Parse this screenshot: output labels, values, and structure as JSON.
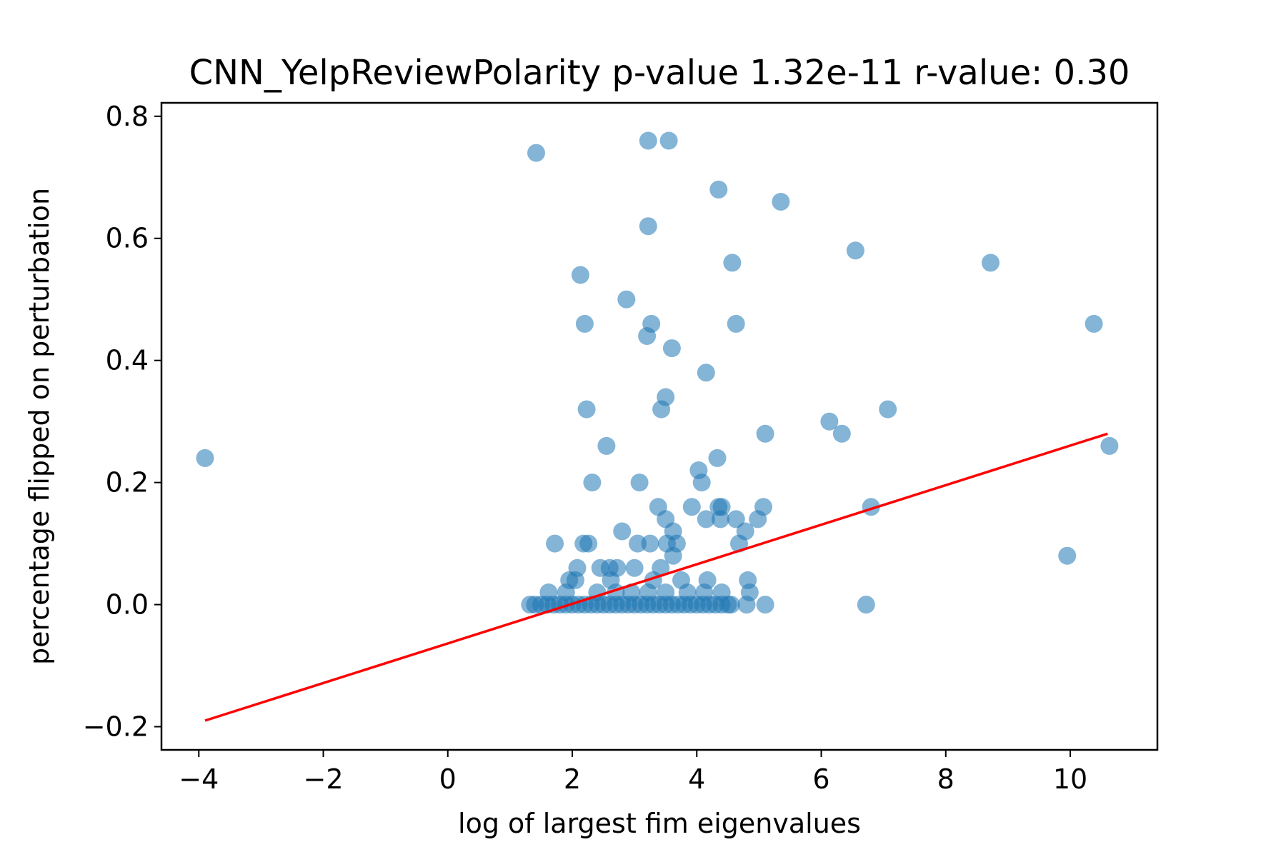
{
  "chart_data": {
    "type": "scatter",
    "title": "CNN_YelpReviewPolarity p-value 1.32e-11 r-value: 0.30",
    "xlabel": "log of largest fim eigenvalues",
    "ylabel": "percentage flipped on perturbation",
    "xlim": [
      -4.6,
      11.4
    ],
    "ylim": [
      -0.238,
      0.822
    ],
    "x_ticks": [
      -4,
      -2,
      0,
      2,
      4,
      6,
      8,
      10
    ],
    "x_tick_labels": [
      "−4",
      "−2",
      "0",
      "2",
      "4",
      "6",
      "8",
      "10"
    ],
    "y_ticks": [
      -0.2,
      0.0,
      0.2,
      0.4,
      0.6,
      0.8
    ],
    "y_tick_labels": [
      "−0.2",
      "0.0",
      "0.2",
      "0.4",
      "0.6",
      "0.8"
    ],
    "grid": false,
    "point_color": "#1f77b4",
    "point_alpha": 0.55,
    "line_color": "#ff0000",
    "points": [
      [
        -3.9,
        0.24
      ],
      [
        1.42,
        0.74
      ],
      [
        3.22,
        0.76
      ],
      [
        3.55,
        0.76
      ],
      [
        4.35,
        0.68
      ],
      [
        5.35,
        0.66
      ],
      [
        3.22,
        0.62
      ],
      [
        6.55,
        0.58
      ],
      [
        4.57,
        0.56
      ],
      [
        8.72,
        0.56
      ],
      [
        2.13,
        0.54
      ],
      [
        2.87,
        0.5
      ],
      [
        2.2,
        0.46
      ],
      [
        3.27,
        0.46
      ],
      [
        4.63,
        0.46
      ],
      [
        10.38,
        0.46
      ],
      [
        3.2,
        0.44
      ],
      [
        3.6,
        0.42
      ],
      [
        4.15,
        0.38
      ],
      [
        3.5,
        0.34
      ],
      [
        2.23,
        0.32
      ],
      [
        3.43,
        0.32
      ],
      [
        7.07,
        0.32
      ],
      [
        6.13,
        0.3
      ],
      [
        6.33,
        0.28
      ],
      [
        5.1,
        0.28
      ],
      [
        2.55,
        0.26
      ],
      [
        10.63,
        0.26
      ],
      [
        4.33,
        0.24
      ],
      [
        4.03,
        0.22
      ],
      [
        2.32,
        0.2
      ],
      [
        3.08,
        0.2
      ],
      [
        4.08,
        0.2
      ],
      [
        3.38,
        0.16
      ],
      [
        3.92,
        0.16
      ],
      [
        4.35,
        0.16
      ],
      [
        4.4,
        0.16
      ],
      [
        5.07,
        0.16
      ],
      [
        6.8,
        0.16
      ],
      [
        3.5,
        0.14
      ],
      [
        4.15,
        0.14
      ],
      [
        4.38,
        0.14
      ],
      [
        4.63,
        0.14
      ],
      [
        4.98,
        0.14
      ],
      [
        2.8,
        0.12
      ],
      [
        3.62,
        0.12
      ],
      [
        4.78,
        0.12
      ],
      [
        1.72,
        0.1
      ],
      [
        2.18,
        0.1
      ],
      [
        2.26,
        0.1
      ],
      [
        3.05,
        0.1
      ],
      [
        3.25,
        0.1
      ],
      [
        3.52,
        0.1
      ],
      [
        3.68,
        0.1
      ],
      [
        4.68,
        0.1
      ],
      [
        3.62,
        0.08
      ],
      [
        9.95,
        0.08
      ],
      [
        2.08,
        0.06
      ],
      [
        2.45,
        0.06
      ],
      [
        2.6,
        0.06
      ],
      [
        2.72,
        0.06
      ],
      [
        3.0,
        0.06
      ],
      [
        3.42,
        0.06
      ],
      [
        1.95,
        0.04
      ],
      [
        2.05,
        0.04
      ],
      [
        2.62,
        0.04
      ],
      [
        3.3,
        0.04
      ],
      [
        3.75,
        0.04
      ],
      [
        4.17,
        0.04
      ],
      [
        4.82,
        0.04
      ],
      [
        1.62,
        0.02
      ],
      [
        1.9,
        0.02
      ],
      [
        2.4,
        0.02
      ],
      [
        2.7,
        0.02
      ],
      [
        2.95,
        0.02
      ],
      [
        3.22,
        0.02
      ],
      [
        3.5,
        0.02
      ],
      [
        3.85,
        0.02
      ],
      [
        4.12,
        0.02
      ],
      [
        4.4,
        0.02
      ],
      [
        4.85,
        0.02
      ],
      [
        1.32,
        0.0
      ],
      [
        1.4,
        0.0
      ],
      [
        1.5,
        0.0
      ],
      [
        1.6,
        0.0
      ],
      [
        1.7,
        0.0
      ],
      [
        1.8,
        0.0
      ],
      [
        1.9,
        0.0
      ],
      [
        2.0,
        0.0
      ],
      [
        2.1,
        0.0
      ],
      [
        2.2,
        0.0
      ],
      [
        2.3,
        0.0
      ],
      [
        2.4,
        0.0
      ],
      [
        2.5,
        0.0
      ],
      [
        2.6,
        0.0
      ],
      [
        2.7,
        0.0
      ],
      [
        2.8,
        0.0
      ],
      [
        2.9,
        0.0
      ],
      [
        3.0,
        0.0
      ],
      [
        3.1,
        0.0
      ],
      [
        3.2,
        0.0
      ],
      [
        3.3,
        0.0
      ],
      [
        3.4,
        0.0
      ],
      [
        3.5,
        0.0
      ],
      [
        3.6,
        0.0
      ],
      [
        3.7,
        0.0
      ],
      [
        3.8,
        0.0
      ],
      [
        3.9,
        0.0
      ],
      [
        4.0,
        0.0
      ],
      [
        4.1,
        0.0
      ],
      [
        4.2,
        0.0
      ],
      [
        4.3,
        0.0
      ],
      [
        4.4,
        0.0
      ],
      [
        4.5,
        0.0
      ],
      [
        4.55,
        0.0
      ],
      [
        4.8,
        0.0
      ],
      [
        5.1,
        0.0
      ],
      [
        6.72,
        0.0
      ]
    ],
    "fit_line": {
      "x": [
        -3.9,
        10.6
      ],
      "y": [
        -0.19,
        0.28
      ]
    }
  }
}
